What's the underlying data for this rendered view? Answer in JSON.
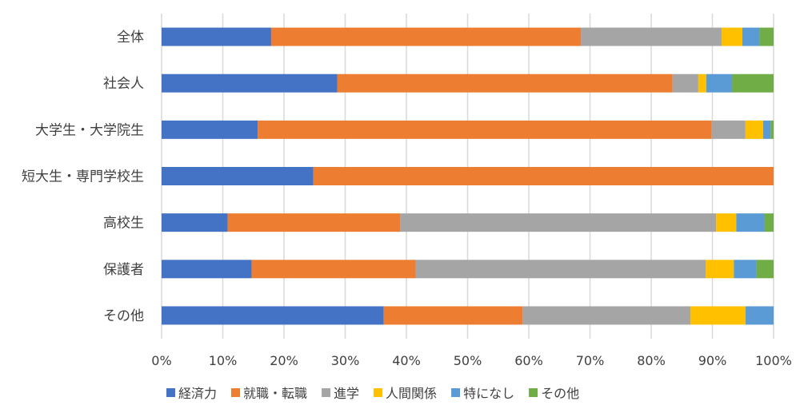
{
  "chart_data": {
    "type": "bar",
    "orientation": "horizontal",
    "stacked": "percent",
    "title": "",
    "xlabel": "",
    "ylabel": "",
    "xlim": [
      0,
      100
    ],
    "grid": true,
    "legend_position": "bottom",
    "x_ticks": [
      "0%",
      "10%",
      "20%",
      "30%",
      "40%",
      "50%",
      "60%",
      "70%",
      "80%",
      "90%",
      "100%"
    ],
    "categories": [
      "全体",
      "社会人",
      "大学生・大学院生",
      "短大生・専門学校生",
      "高校生",
      "保護者",
      "その他"
    ],
    "series": [
      {
        "name": "経済力",
        "color": "#4472C4",
        "values": [
          17.9,
          28.7,
          15.7,
          24.8,
          10.8,
          14.7,
          36.3
        ]
      },
      {
        "name": "就職・転職",
        "color": "#ED7D31",
        "values": [
          50.6,
          54.8,
          74.2,
          75.2,
          28.2,
          26.8,
          22.7
        ]
      },
      {
        "name": "進学",
        "color": "#A5A5A5",
        "values": [
          23.0,
          4.2,
          5.5,
          0,
          51.6,
          47.4,
          27.4
        ]
      },
      {
        "name": "人間関係",
        "color": "#FFC000",
        "values": [
          3.4,
          1.3,
          2.9,
          0,
          3.3,
          4.6,
          9.0
        ]
      },
      {
        "name": "特になし",
        "color": "#5B9BD5",
        "values": [
          2.8,
          4.2,
          1.2,
          0,
          4.6,
          3.7,
          4.6
        ]
      },
      {
        "name": "その他",
        "color": "#70AD47",
        "values": [
          2.3,
          6.8,
          0.5,
          0,
          1.5,
          2.8,
          0
        ]
      }
    ]
  }
}
